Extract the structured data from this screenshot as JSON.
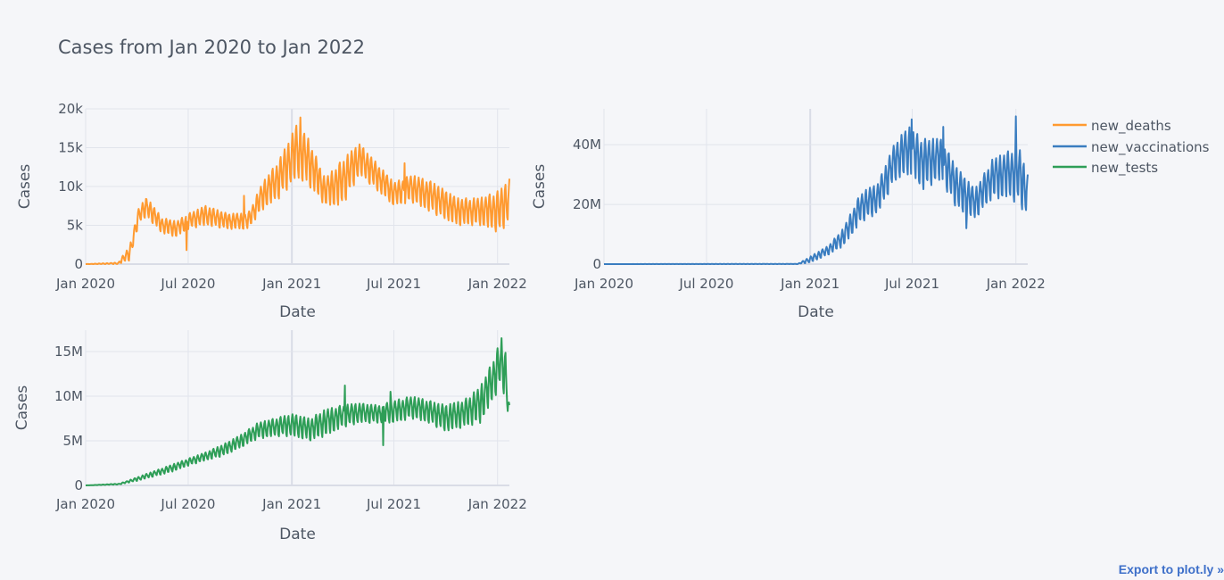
{
  "title": "Cases from Jan 2020 to Jan 2022",
  "export_label": "Export to plot.ly »",
  "legend": [
    "new_deaths",
    "new_vaccinations",
    "new_tests"
  ],
  "chart_data": [
    {
      "type": "line",
      "series": [
        {
          "name": "new_deaths",
          "color": "#ff9a30"
        }
      ],
      "xlabel": "Date",
      "ylabel": "Cases",
      "x_range": [
        "2020-01-01",
        "2022-01-22"
      ],
      "x_ticks": [
        "Jan 2020",
        "Jul 2020",
        "Jan 2021",
        "Jul 2021",
        "Jan 2022"
      ],
      "ylim": [
        0,
        20000
      ],
      "y_ticks": [
        {
          "v": 0,
          "label": "0"
        },
        {
          "v": 5000,
          "label": "5k"
        },
        {
          "v": 10000,
          "label": "10k"
        },
        {
          "v": 15000,
          "label": "15k"
        },
        {
          "v": 20000,
          "label": "20k"
        }
      ],
      "envelope": [
        {
          "date": "2020-01-01",
          "low": 0,
          "high": 0
        },
        {
          "date": "2020-02-28",
          "low": 0,
          "high": 200
        },
        {
          "date": "2020-03-20",
          "low": 500,
          "high": 2500
        },
        {
          "date": "2020-04-05",
          "low": 5500,
          "high": 7500
        },
        {
          "date": "2020-04-20",
          "low": 6000,
          "high": 8500
        },
        {
          "date": "2020-05-15",
          "low": 4000,
          "high": 6000
        },
        {
          "date": "2020-06-10",
          "low": 3500,
          "high": 5500
        },
        {
          "date": "2020-07-01",
          "low": 4500,
          "high": 6500
        },
        {
          "date": "2020-08-01",
          "low": 5000,
          "high": 7500
        },
        {
          "date": "2020-09-10",
          "low": 4500,
          "high": 6500
        },
        {
          "date": "2020-10-15",
          "low": 4500,
          "high": 6500
        },
        {
          "date": "2020-11-10",
          "low": 7000,
          "high": 10500
        },
        {
          "date": "2020-12-10",
          "low": 8500,
          "high": 13500
        },
        {
          "date": "2021-01-10",
          "low": 11000,
          "high": 18000
        },
        {
          "date": "2021-02-01",
          "low": 10000,
          "high": 16000
        },
        {
          "date": "2021-03-01",
          "low": 7500,
          "high": 11000
        },
        {
          "date": "2021-04-01",
          "low": 7500,
          "high": 13500
        },
        {
          "date": "2021-05-01",
          "low": 11500,
          "high": 15500
        },
        {
          "date": "2021-06-01",
          "low": 9500,
          "high": 13000
        },
        {
          "date": "2021-07-01",
          "low": 7500,
          "high": 10500
        },
        {
          "date": "2021-08-01",
          "low": 8000,
          "high": 11500
        },
        {
          "date": "2021-09-10",
          "low": 6500,
          "high": 10500
        },
        {
          "date": "2021-10-20",
          "low": 5000,
          "high": 8500
        },
        {
          "date": "2021-12-01",
          "low": 5000,
          "high": 8500
        },
        {
          "date": "2022-01-05",
          "low": 4000,
          "high": 9500
        },
        {
          "date": "2022-01-22",
          "low": 5500,
          "high": 11000
        }
      ],
      "spikes": [
        {
          "date": "2020-06-28",
          "value": 1800
        },
        {
          "date": "2020-04-17",
          "value": 8400
        },
        {
          "date": "2020-10-08",
          "value": 8800
        },
        {
          "date": "2021-07-20",
          "value": 13000
        },
        {
          "date": "2021-01-16",
          "value": 18900
        }
      ]
    },
    {
      "type": "line",
      "series": [
        {
          "name": "new_vaccinations",
          "color": "#3a7dc0"
        }
      ],
      "xlabel": "Date",
      "ylabel": "Cases",
      "x_range": [
        "2020-01-01",
        "2022-01-22"
      ],
      "x_ticks": [
        "Jan 2020",
        "Jul 2020",
        "Jan 2021",
        "Jul 2021",
        "Jan 2022"
      ],
      "ylim": [
        0,
        52000000
      ],
      "y_ticks": [
        {
          "v": 0,
          "label": "0"
        },
        {
          "v": 20000000,
          "label": "20M"
        },
        {
          "v": 40000000,
          "label": "40M"
        }
      ],
      "envelope": [
        {
          "date": "2020-01-01",
          "low": 0,
          "high": 0
        },
        {
          "date": "2020-12-10",
          "low": 0,
          "high": 100000
        },
        {
          "date": "2021-01-01",
          "low": 500000,
          "high": 2500000
        },
        {
          "date": "2021-02-01",
          "low": 3000000,
          "high": 6000000
        },
        {
          "date": "2021-03-01",
          "low": 6000000,
          "high": 12000000
        },
        {
          "date": "2021-04-01",
          "low": 14000000,
          "high": 24000000
        },
        {
          "date": "2021-05-01",
          "low": 17000000,
          "high": 27000000
        },
        {
          "date": "2021-06-01",
          "low": 28000000,
          "high": 41000000
        },
        {
          "date": "2021-06-25",
          "low": 30000000,
          "high": 46000000
        },
        {
          "date": "2021-07-20",
          "low": 25000000,
          "high": 42000000
        },
        {
          "date": "2021-08-20",
          "low": 28000000,
          "high": 42000000
        },
        {
          "date": "2021-09-20",
          "low": 18000000,
          "high": 32000000
        },
        {
          "date": "2021-10-20",
          "low": 15000000,
          "high": 25000000
        },
        {
          "date": "2021-11-20",
          "low": 22000000,
          "high": 35000000
        },
        {
          "date": "2021-12-20",
          "low": 22000000,
          "high": 38000000
        },
        {
          "date": "2022-01-05",
          "low": 20000000,
          "high": 40000000
        },
        {
          "date": "2022-01-22",
          "low": 16000000,
          "high": 30000000
        }
      ],
      "spikes": [
        {
          "date": "2021-06-30",
          "value": 48500000
        },
        {
          "date": "2021-08-25",
          "value": 46000000
        },
        {
          "date": "2022-01-01",
          "value": 49500000
        },
        {
          "date": "2021-10-05",
          "value": 12000000
        }
      ]
    },
    {
      "type": "line",
      "series": [
        {
          "name": "new_tests",
          "color": "#2e9e57"
        }
      ],
      "xlabel": "Date",
      "ylabel": "Cases",
      "x_range": [
        "2020-01-01",
        "2022-01-22"
      ],
      "x_ticks": [
        "Jan 2020",
        "Jul 2020",
        "Jan 2021",
        "Jul 2021",
        "Jan 2022"
      ],
      "ylim": [
        0,
        17400000
      ],
      "y_ticks": [
        {
          "v": 0,
          "label": "0"
        },
        {
          "v": 5000000,
          "label": "5M"
        },
        {
          "v": 10000000,
          "label": "10M"
        },
        {
          "v": 15000000,
          "label": "15M"
        }
      ],
      "envelope": [
        {
          "date": "2020-01-01",
          "low": 0,
          "high": 0
        },
        {
          "date": "2020-03-01",
          "low": 100000,
          "high": 200000
        },
        {
          "date": "2020-04-01",
          "low": 500000,
          "high": 900000
        },
        {
          "date": "2020-05-01",
          "low": 1000000,
          "high": 1600000
        },
        {
          "date": "2020-06-01",
          "low": 1500000,
          "high": 2300000
        },
        {
          "date": "2020-07-01",
          "low": 2200000,
          "high": 3000000
        },
        {
          "date": "2020-08-01",
          "low": 2800000,
          "high": 3700000
        },
        {
          "date": "2020-09-01",
          "low": 3300000,
          "high": 4600000
        },
        {
          "date": "2020-10-01",
          "low": 4200000,
          "high": 5600000
        },
        {
          "date": "2020-11-01",
          "low": 5200000,
          "high": 7000000
        },
        {
          "date": "2020-12-01",
          "low": 5500000,
          "high": 7500000
        },
        {
          "date": "2021-01-01",
          "low": 5500000,
          "high": 8000000
        },
        {
          "date": "2021-02-01",
          "low": 5000000,
          "high": 7500000
        },
        {
          "date": "2021-03-01",
          "low": 5500000,
          "high": 8500000
        },
        {
          "date": "2021-04-01",
          "low": 6500000,
          "high": 9000000
        },
        {
          "date": "2021-05-01",
          "low": 7000000,
          "high": 9200000
        },
        {
          "date": "2021-06-01",
          "low": 7000000,
          "high": 9000000
        },
        {
          "date": "2021-07-01",
          "low": 7000000,
          "high": 9500000
        },
        {
          "date": "2021-08-01",
          "low": 7500000,
          "high": 10000000
        },
        {
          "date": "2021-09-01",
          "low": 7000000,
          "high": 9500000
        },
        {
          "date": "2021-10-01",
          "low": 6000000,
          "high": 9000000
        },
        {
          "date": "2021-11-01",
          "low": 6500000,
          "high": 9500000
        },
        {
          "date": "2021-12-01",
          "low": 7000000,
          "high": 11000000
        },
        {
          "date": "2021-12-20",
          "low": 9000000,
          "high": 13500000
        },
        {
          "date": "2022-01-05",
          "low": 11000000,
          "high": 16000000
        },
        {
          "date": "2022-01-15",
          "low": 10000000,
          "high": 15000000
        },
        {
          "date": "2022-01-22",
          "low": 6500000,
          "high": 9000000
        }
      ],
      "spikes": [
        {
          "date": "2021-04-05",
          "value": 11200000
        },
        {
          "date": "2021-06-12",
          "value": 4500000
        },
        {
          "date": "2022-01-08",
          "value": 16500000
        },
        {
          "date": "2021-06-25",
          "value": 10500000
        }
      ]
    }
  ]
}
